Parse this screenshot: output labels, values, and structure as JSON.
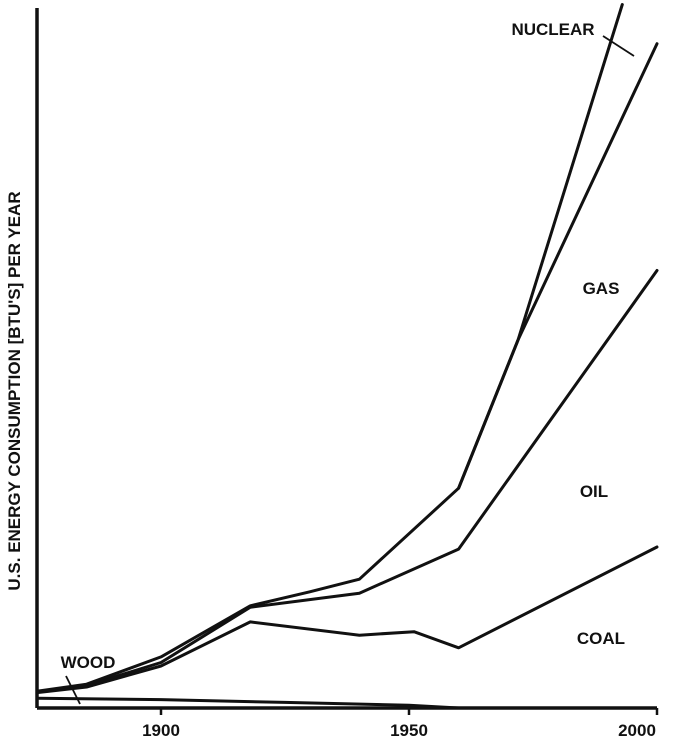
{
  "chart_data": {
    "type": "area",
    "title": "",
    "xlabel": "",
    "ylabel": "U.S. ENERGY CONSUMPTION [BTU'S] PER YEAR",
    "xlim": [
      1875,
      2000
    ],
    "ylim": [
      0,
      100
    ],
    "y_tick_labels": "none",
    "grid": false,
    "x_ticks": [
      {
        "value": 1900,
        "label": "1900"
      },
      {
        "value": 1950,
        "label": "1950"
      },
      {
        "value": 2000,
        "label": "2000"
      }
    ],
    "boundaries": [
      {
        "id": "wood",
        "points": [
          [
            1875,
            1.4
          ],
          [
            1900,
            1.2
          ],
          [
            1925,
            0.8
          ],
          [
            1950,
            0.4
          ],
          [
            1960,
            0
          ]
        ]
      },
      {
        "id": "coal",
        "points": [
          [
            1875,
            2.2
          ],
          [
            1885,
            3.0
          ],
          [
            1900,
            6.0
          ],
          [
            1918,
            12.3
          ],
          [
            1940,
            10.4
          ],
          [
            1951,
            10.9
          ],
          [
            1960,
            8.6
          ],
          [
            2000,
            23.0
          ]
        ]
      },
      {
        "id": "oil",
        "points": [
          [
            1875,
            2.3
          ],
          [
            1885,
            3.2
          ],
          [
            1900,
            6.5
          ],
          [
            1918,
            14.4
          ],
          [
            1940,
            16.4
          ],
          [
            1960,
            22.7
          ],
          [
            2000,
            62.5
          ]
        ]
      },
      {
        "id": "gas",
        "points": [
          [
            1875,
            2.4
          ],
          [
            1885,
            3.4
          ],
          [
            1900,
            7.3
          ],
          [
            1918,
            14.6
          ],
          [
            1930,
            16.6
          ],
          [
            1940,
            18.4
          ],
          [
            1960,
            31.4
          ],
          [
            1972,
            52.6
          ],
          [
            2000,
            94.9
          ]
        ]
      },
      {
        "id": "nuclear",
        "points": [
          [
            1960,
            31.4
          ],
          [
            1972,
            52.6
          ],
          [
            1993,
            100.5
          ]
        ]
      }
    ],
    "region_labels": [
      {
        "id": "nuclear",
        "text": "NUCLEAR"
      },
      {
        "id": "gas",
        "text": "GAS"
      },
      {
        "id": "oil",
        "text": "OIL"
      },
      {
        "id": "coal",
        "text": "COAL"
      },
      {
        "id": "wood",
        "text": "WOOD"
      }
    ]
  }
}
